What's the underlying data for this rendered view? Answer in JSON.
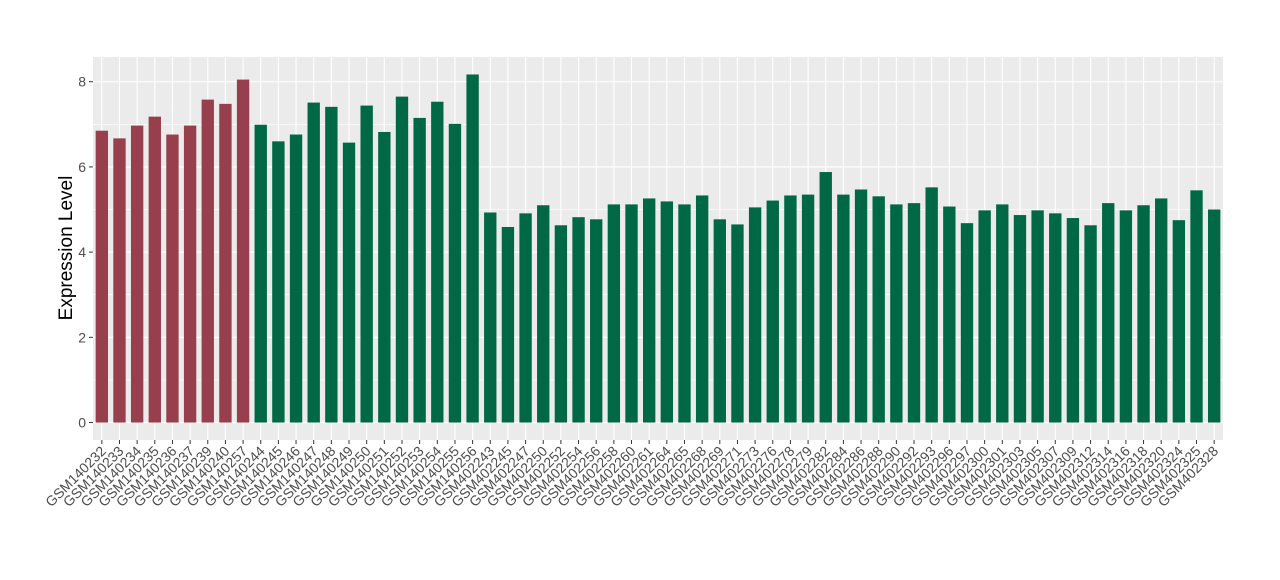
{
  "chart_data": {
    "type": "bar",
    "y_label": "Expression Level",
    "categories": [
      "GSM140232",
      "GSM140233",
      "GSM140234",
      "GSM140235",
      "GSM140236",
      "GSM140237",
      "GSM140239",
      "GSM140240",
      "GSM140257",
      "GSM140244",
      "GSM140245",
      "GSM140246",
      "GSM140247",
      "GSM140248",
      "GSM140249",
      "GSM140250",
      "GSM140251",
      "GSM140252",
      "GSM140253",
      "GSM140254",
      "GSM140255",
      "GSM140256",
      "GSM402243",
      "GSM402245",
      "GSM402247",
      "GSM402250",
      "GSM402252",
      "GSM402254",
      "GSM402256",
      "GSM402258",
      "GSM402260",
      "GSM402261",
      "GSM402264",
      "GSM402265",
      "GSM402268",
      "GSM402269",
      "GSM402271",
      "GSM402273",
      "GSM402276",
      "GSM402278",
      "GSM402279",
      "GSM402282",
      "GSM402284",
      "GSM402286",
      "GSM402288",
      "GSM402290",
      "GSM402292",
      "GSM402293",
      "GSM402296",
      "GSM402297",
      "GSM402300",
      "GSM402301",
      "GSM402303",
      "GSM402305",
      "GSM402307",
      "GSM402309",
      "GSM402312",
      "GSM402314",
      "GSM402316",
      "GSM402318",
      "GSM402320",
      "GSM402324",
      "GSM402325",
      "GSM402328"
    ],
    "values": [
      6.85,
      6.67,
      6.97,
      7.18,
      6.76,
      6.97,
      7.58,
      7.48,
      8.05,
      6.99,
      6.6,
      6.76,
      7.51,
      7.41,
      6.57,
      7.44,
      6.82,
      7.65,
      7.15,
      7.53,
      7.01,
      8.17,
      4.93,
      4.59,
      4.91,
      5.1,
      4.63,
      4.82,
      4.77,
      5.12,
      5.12,
      5.26,
      5.19,
      5.12,
      5.33,
      4.77,
      4.65,
      5.05,
      5.21,
      5.33,
      5.35,
      5.88,
      5.35,
      5.47,
      5.31,
      5.12,
      5.15,
      5.52,
      5.07,
      4.68,
      4.98,
      5.12,
      4.87,
      4.98,
      4.91,
      4.8,
      4.63,
      5.15,
      4.98,
      5.1,
      5.26,
      4.75,
      5.45,
      5.0
    ],
    "colors": [
      "#973f4d",
      "#973f4d",
      "#973f4d",
      "#973f4d",
      "#973f4d",
      "#973f4d",
      "#973f4d",
      "#973f4d",
      "#973f4d",
      "#006845",
      "#006845",
      "#006845",
      "#006845",
      "#006845",
      "#006845",
      "#006845",
      "#006845",
      "#006845",
      "#006845",
      "#006845",
      "#006845",
      "#006845",
      "#006845",
      "#006845",
      "#006845",
      "#006845",
      "#006845",
      "#006845",
      "#006845",
      "#006845",
      "#006845",
      "#006845",
      "#006845",
      "#006845",
      "#006845",
      "#006845",
      "#006845",
      "#006845",
      "#006845",
      "#006845",
      "#006845",
      "#006845",
      "#006845",
      "#006845",
      "#006845",
      "#006845",
      "#006845",
      "#006845",
      "#006845",
      "#006845",
      "#006845",
      "#006845",
      "#006845",
      "#006845",
      "#006845",
      "#006845",
      "#006845",
      "#006845",
      "#006845",
      "#006845",
      "#006845",
      "#006845",
      "#006845",
      "#006845"
    ],
    "ylim": [
      -0.41,
      8.58
    ],
    "yticks": [
      0,
      2,
      4,
      6,
      8
    ],
    "grid": true
  }
}
